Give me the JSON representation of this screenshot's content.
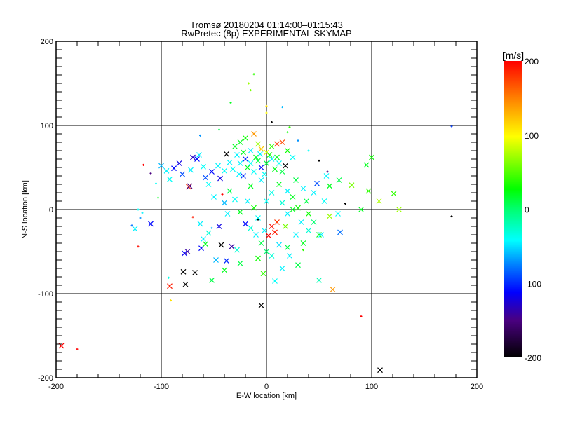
{
  "chart_data": {
    "type": "scatter",
    "title": "Tromsø 20180204 01:14:00–01:15:43",
    "subtitle": "RwPretec (8p) EXPERIMENTAL SKYMAP",
    "xlabel": "E-W location [km]",
    "ylabel": "N-S location [km]",
    "xlim": [
      -200,
      200
    ],
    "ylim": [
      -200,
      200
    ],
    "xticks": [
      "-200",
      "-100",
      "0",
      "100",
      "200"
    ],
    "yticks": [
      "200",
      "100",
      "0",
      "-100",
      "-200"
    ],
    "grid": true,
    "colorbar": {
      "label": "[m/s]",
      "range": [
        -200,
        200
      ],
      "ticks": [
        "200",
        "100",
        "0",
        "-100",
        "-200"
      ],
      "colormap": [
        [
          -200,
          "#000000"
        ],
        [
          -150,
          "#4a0080"
        ],
        [
          -112,
          "#0000ff"
        ],
        [
          -75,
          "#0080ff"
        ],
        [
          -42,
          "#00ffff"
        ],
        [
          0,
          "#00ff70"
        ],
        [
          27,
          "#00ff00"
        ],
        [
          98,
          "#ffff00"
        ],
        [
          150,
          "#ff8000"
        ],
        [
          200,
          "#ff0000"
        ]
      ]
    },
    "point_fields": [
      "x_km",
      "y_km",
      "velocity_ms",
      "marker"
    ],
    "points": [
      [
        -195,
        -162,
        200,
        "x"
      ],
      [
        -180,
        -166,
        200,
        "+"
      ],
      [
        -117,
        53,
        200,
        "+"
      ],
      [
        -122,
        -44,
        195,
        "+"
      ],
      [
        -128,
        -19,
        -80,
        "+"
      ],
      [
        -125,
        -23,
        -45,
        "x"
      ],
      [
        -110,
        -17,
        -110,
        "x"
      ],
      [
        -120,
        -10,
        -70,
        "+"
      ],
      [
        -118,
        -4,
        -45,
        "+"
      ],
      [
        -122,
        0,
        -40,
        "+"
      ],
      [
        -103,
        14,
        20,
        "+"
      ],
      [
        -92,
        -91,
        190,
        "x"
      ],
      [
        -91,
        -108,
        110,
        "+"
      ],
      [
        -93,
        -81,
        -35,
        "+"
      ],
      [
        -79,
        -74,
        -200,
        "x"
      ],
      [
        -77,
        -89,
        -200,
        "x"
      ],
      [
        -68,
        -75,
        -200,
        "x"
      ],
      [
        -75,
        -50,
        -140,
        "x"
      ],
      [
        -78,
        -52,
        -115,
        "x"
      ],
      [
        -70,
        -9,
        190,
        "+"
      ],
      [
        -74,
        27,
        180,
        "x"
      ],
      [
        -73,
        28,
        -150,
        "x"
      ],
      [
        -62,
        -46,
        -110,
        "x"
      ],
      [
        -60,
        -35,
        -45,
        "x"
      ],
      [
        -52,
        -84,
        10,
        "x"
      ],
      [
        -40,
        -72,
        20,
        "x"
      ],
      [
        -55,
        -28,
        -30,
        "x"
      ],
      [
        -48,
        -60,
        -60,
        "x"
      ],
      [
        -38,
        -61,
        -100,
        "x"
      ],
      [
        -28,
        -48,
        -30,
        "x"
      ],
      [
        -25,
        -64,
        10,
        "x"
      ],
      [
        -43,
        -42,
        -200,
        "x"
      ],
      [
        -33,
        -44,
        -140,
        "x"
      ],
      [
        -58,
        -41,
        20,
        "x"
      ],
      [
        -63,
        -17,
        -45,
        "x"
      ],
      [
        -45,
        -20,
        -120,
        "x"
      ],
      [
        -37,
        -5,
        -45,
        "x"
      ],
      [
        -20,
        -17,
        -110,
        "x"
      ],
      [
        -15,
        -22,
        -30,
        "x"
      ],
      [
        -10,
        -30,
        -45,
        "x"
      ],
      [
        -5,
        -40,
        10,
        "x"
      ],
      [
        0,
        -50,
        0,
        "x"
      ],
      [
        5,
        -55,
        -30,
        "x"
      ],
      [
        -8,
        -58,
        30,
        "x"
      ],
      [
        12,
        -42,
        -50,
        "x"
      ],
      [
        20,
        -45,
        10,
        "x"
      ],
      [
        28,
        -30,
        -45,
        "x"
      ],
      [
        35,
        -40,
        20,
        "x"
      ],
      [
        40,
        -25,
        -30,
        "x"
      ],
      [
        45,
        -15,
        0,
        "x"
      ],
      [
        50,
        -30,
        20,
        "x"
      ],
      [
        30,
        -66,
        10,
        "x"
      ],
      [
        22,
        -55,
        -45,
        "x"
      ],
      [
        15,
        -70,
        -45,
        "x"
      ],
      [
        -3,
        -76,
        40,
        "x"
      ],
      [
        8,
        -85,
        -40,
        "x"
      ],
      [
        -5,
        -114,
        -200,
        "x"
      ],
      [
        63,
        -95,
        140,
        "x"
      ],
      [
        50,
        -84,
        -20,
        "x"
      ],
      [
        90,
        -127,
        200,
        "+"
      ],
      [
        108,
        -191,
        -200,
        "x"
      ],
      [
        176,
        -8,
        -200,
        "+"
      ],
      [
        176,
        99,
        -95,
        "+"
      ],
      [
        75,
        7,
        -200,
        "+"
      ],
      [
        81,
        29,
        60,
        "x"
      ],
      [
        95,
        53,
        20,
        "x"
      ],
      [
        100,
        62,
        30,
        "x"
      ],
      [
        90,
        0,
        20,
        "x"
      ],
      [
        97,
        22,
        40,
        "x"
      ],
      [
        107,
        10,
        75,
        "x"
      ],
      [
        121,
        19,
        40,
        "x"
      ],
      [
        126,
        0,
        70,
        "x"
      ],
      [
        69,
        35,
        10,
        "x"
      ],
      [
        57,
        40,
        -45,
        "x"
      ],
      [
        70,
        -27,
        -80,
        "x"
      ],
      [
        68,
        -5,
        -40,
        "x"
      ],
      [
        60,
        -8,
        70,
        "x"
      ],
      [
        52,
        -30,
        -45,
        "x"
      ],
      [
        48,
        31,
        -90,
        "x"
      ],
      [
        60,
        28,
        20,
        "x"
      ],
      [
        45,
        20,
        -45,
        "x"
      ],
      [
        38,
        10,
        10,
        "x"
      ],
      [
        30,
        2,
        30,
        "x"
      ],
      [
        25,
        0,
        20,
        "x"
      ],
      [
        20,
        -5,
        -45,
        "x"
      ],
      [
        15,
        8,
        -30,
        "x"
      ],
      [
        10,
        -15,
        180,
        "x"
      ],
      [
        5,
        -20,
        195,
        "x"
      ],
      [
        8,
        -27,
        190,
        "x"
      ],
      [
        2,
        -31,
        200,
        "x"
      ],
      [
        -2,
        -25,
        -45,
        "x"
      ],
      [
        -8,
        -10,
        -40,
        "x"
      ],
      [
        -12,
        2,
        30,
        "x"
      ],
      [
        -18,
        10,
        -45,
        "x"
      ],
      [
        -25,
        -3,
        20,
        "x"
      ],
      [
        -30,
        12,
        -40,
        "x"
      ],
      [
        -35,
        22,
        10,
        "x"
      ],
      [
        -40,
        8,
        -60,
        "x"
      ],
      [
        -50,
        15,
        -45,
        "x"
      ],
      [
        5,
        20,
        -35,
        "x"
      ],
      [
        12,
        30,
        20,
        "x"
      ],
      [
        20,
        22,
        -45,
        "x"
      ],
      [
        28,
        35,
        10,
        "x"
      ],
      [
        35,
        25,
        -45,
        "x"
      ],
      [
        -5,
        35,
        -45,
        "x"
      ],
      [
        -15,
        28,
        20,
        "x"
      ],
      [
        -22,
        40,
        -100,
        "x"
      ],
      [
        15,
        45,
        10,
        "x"
      ],
      [
        25,
        15,
        20,
        "x"
      ],
      [
        40,
        -5,
        30,
        "x"
      ],
      [
        55,
        10,
        -40,
        "x"
      ],
      [
        33,
        -15,
        -45,
        "x"
      ],
      [
        18,
        -20,
        60,
        "x"
      ],
      [
        0,
        10,
        -40,
        "x"
      ],
      [
        -100,
        52,
        -60,
        "x"
      ],
      [
        -95,
        46,
        -45,
        "x"
      ],
      [
        -88,
        49,
        -110,
        "x"
      ],
      [
        -83,
        55,
        -120,
        "x"
      ],
      [
        -92,
        36,
        -40,
        "x"
      ],
      [
        -80,
        42,
        -90,
        "x"
      ],
      [
        -72,
        47,
        -45,
        "x"
      ],
      [
        -66,
        60,
        -110,
        "x"
      ],
      [
        -60,
        51,
        -40,
        "x"
      ],
      [
        -58,
        38,
        -90,
        "x"
      ],
      [
        -52,
        45,
        -110,
        "x"
      ],
      [
        -46,
        52,
        -45,
        "x"
      ],
      [
        -40,
        46,
        -40,
        "x"
      ],
      [
        -44,
        37,
        -120,
        "x"
      ],
      [
        -35,
        56,
        -45,
        "x"
      ],
      [
        -70,
        62,
        -130,
        "x"
      ],
      [
        -64,
        65,
        -45,
        "x"
      ],
      [
        -55,
        30,
        -40,
        "x"
      ],
      [
        -105,
        31,
        -40,
        "+"
      ],
      [
        -110,
        43,
        -150,
        "+"
      ],
      [
        -30,
        75,
        20,
        "x"
      ],
      [
        -25,
        80,
        20,
        "x"
      ],
      [
        -20,
        85,
        30,
        "x"
      ],
      [
        -12,
        90,
        140,
        "x"
      ],
      [
        -8,
        78,
        70,
        "x"
      ],
      [
        -5,
        72,
        120,
        "x"
      ],
      [
        0,
        68,
        90,
        "x"
      ],
      [
        5,
        75,
        40,
        "x"
      ],
      [
        10,
        78,
        180,
        "x"
      ],
      [
        15,
        80,
        170,
        "x"
      ],
      [
        20,
        70,
        30,
        "x"
      ],
      [
        25,
        62,
        -40,
        "x"
      ],
      [
        -15,
        70,
        -45,
        "x"
      ],
      [
        -10,
        62,
        20,
        "x"
      ],
      [
        -20,
        60,
        -100,
        "x"
      ],
      [
        -25,
        55,
        -45,
        "x"
      ],
      [
        -18,
        50,
        20,
        "x"
      ],
      [
        -12,
        45,
        -40,
        "x"
      ],
      [
        -5,
        50,
        -110,
        "x"
      ],
      [
        0,
        55,
        10,
        "x"
      ],
      [
        5,
        60,
        -45,
        "x"
      ],
      [
        8,
        48,
        20,
        "x"
      ],
      [
        12,
        55,
        -40,
        "x"
      ],
      [
        18,
        52,
        -200,
        "x"
      ],
      [
        -28,
        65,
        -45,
        "x"
      ],
      [
        -32,
        48,
        -40,
        "x"
      ],
      [
        -8,
        58,
        10,
        "x"
      ],
      [
        -2,
        42,
        -40,
        "x"
      ],
      [
        3,
        65,
        30,
        "x"
      ],
      [
        -22,
        68,
        20,
        "x"
      ],
      [
        -38,
        66,
        -200,
        "x"
      ],
      [
        -15,
        55,
        -40,
        "x"
      ],
      [
        -6,
        66,
        -45,
        "x"
      ],
      [
        10,
        62,
        20,
        "x"
      ],
      [
        -26,
        42,
        -45,
        "x"
      ],
      [
        -12,
        161,
        40,
        "+"
      ],
      [
        -17,
        150,
        70,
        "+"
      ],
      [
        -15,
        142,
        60,
        "+"
      ],
      [
        0,
        123,
        110,
        "+"
      ],
      [
        0,
        115,
        100,
        "+"
      ],
      [
        5,
        104,
        -200,
        "+"
      ],
      [
        15,
        122,
        -60,
        "+"
      ],
      [
        22,
        98,
        40,
        "+"
      ],
      [
        20,
        92,
        30,
        "+"
      ],
      [
        -34,
        127,
        20,
        "+"
      ],
      [
        30,
        82,
        -70,
        "+"
      ],
      [
        40,
        70,
        -40,
        "+"
      ],
      [
        50,
        58,
        -200,
        "+"
      ],
      [
        58,
        45,
        -150,
        "+"
      ],
      [
        -63,
        88,
        -70,
        "+"
      ],
      [
        -45,
        95,
        10,
        "+"
      ],
      [
        -42,
        18,
        200,
        "+"
      ],
      [
        -52,
        -22,
        -60,
        "+"
      ],
      [
        -8,
        -12,
        -200,
        "+"
      ],
      [
        35,
        -48,
        40,
        "+"
      ]
    ]
  }
}
